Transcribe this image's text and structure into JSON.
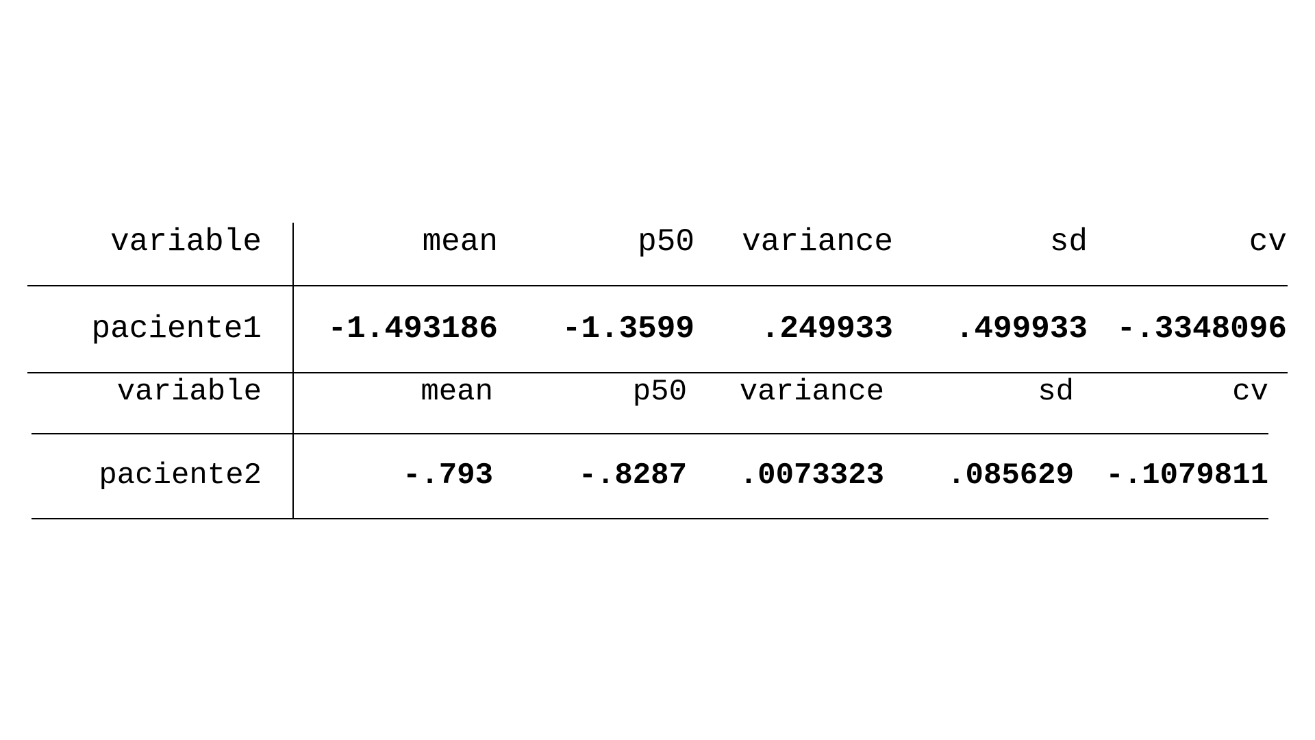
{
  "tables": [
    {
      "headers": [
        "variable",
        "mean",
        "p50",
        "variance",
        "sd",
        "cv"
      ],
      "row": [
        "paciente1",
        "-1.493186",
        "-1.3599",
        ".249933",
        ".499933",
        "-.3348096"
      ]
    },
    {
      "headers": [
        "variable",
        "mean",
        "p50",
        "variance",
        "sd",
        "cv"
      ],
      "row": [
        "paciente2",
        "-.793",
        "-.8287",
        ".0073323",
        ".085629",
        "-.1079811"
      ]
    }
  ]
}
